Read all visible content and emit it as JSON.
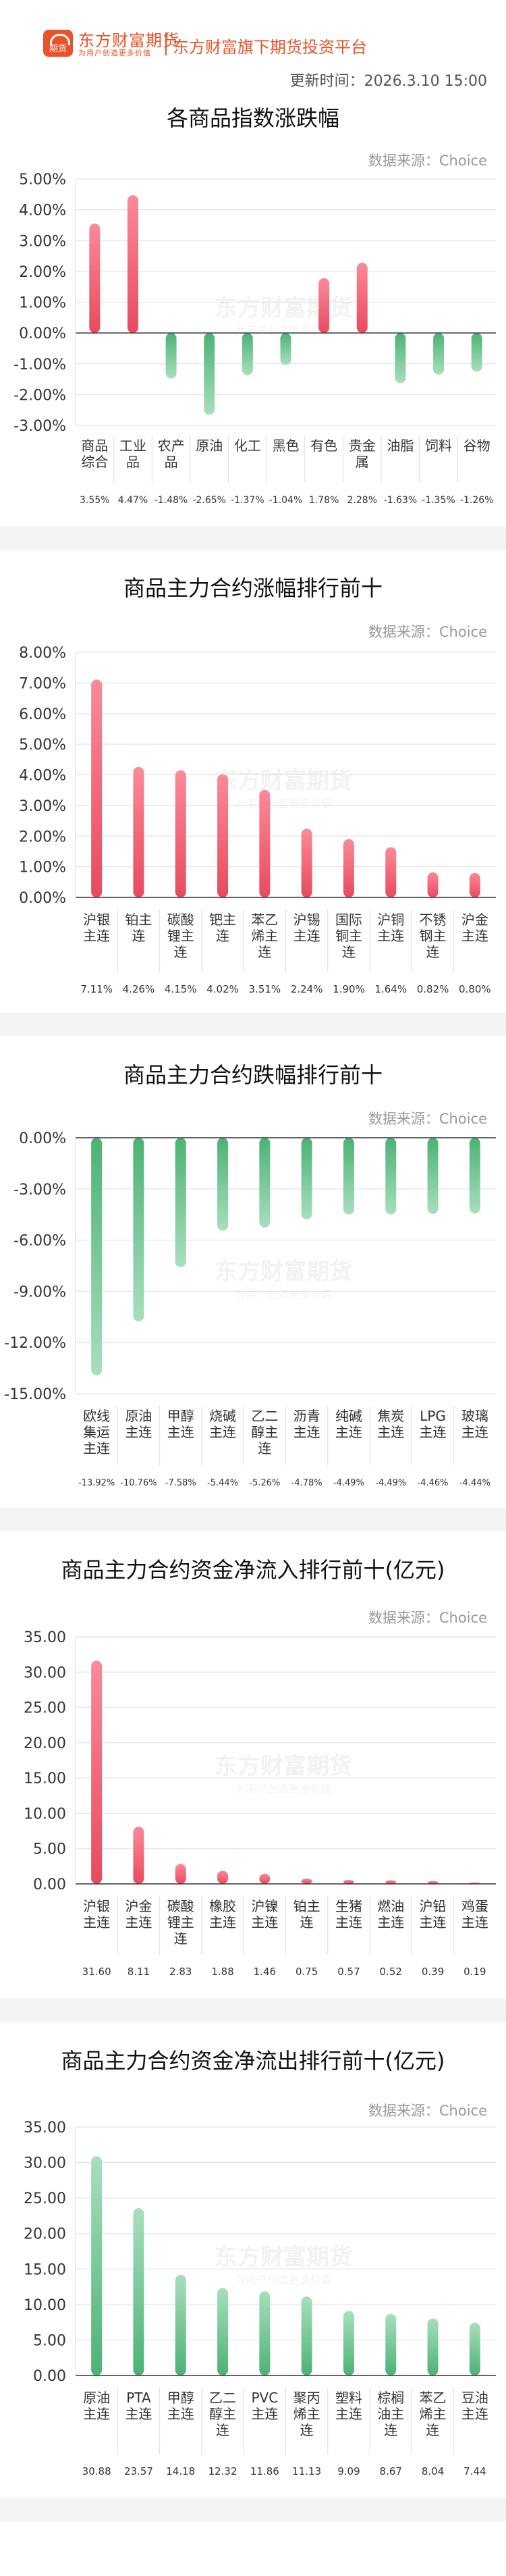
{
  "brand": {
    "name": "东方财富期货",
    "slogan": "为用户创造更多价值",
    "logo_glyph": "期货",
    "platform": "东方财富旗下期货投资平台",
    "color": "#e8532a"
  },
  "update_time": "更新时间：2026.3.10 15:00",
  "watermark": {
    "name": "东方财富期货",
    "slogan": "为用户创造更多价值"
  },
  "colors": {
    "up_top": "#fb8a99",
    "up_bottom": "#e84a5f",
    "down_top": "#a8dfbd",
    "down_bottom": "#4cb274",
    "grid": "#dddddd",
    "axis": "#333333"
  },
  "chart_data": [
    {
      "type": "bar",
      "title": "各商品指数涨跌幅",
      "source": "数据来源：Choice",
      "categories": [
        "商品综合",
        "工业品",
        "农产品",
        "原油",
        "化工",
        "黑色",
        "有色",
        "贵金属",
        "油脂",
        "饲料",
        "谷物"
      ],
      "category_lines": [
        [
          "商品",
          "综合"
        ],
        [
          "工业",
          "品"
        ],
        [
          "农产",
          "品"
        ],
        [
          "原油"
        ],
        [
          "化工"
        ],
        [
          "黑色"
        ],
        [
          "有色"
        ],
        [
          "贵金",
          "属"
        ],
        [
          "油脂"
        ],
        [
          "饲料"
        ],
        [
          "谷物"
        ]
      ],
      "values": [
        3.55,
        4.47,
        -1.48,
        -2.65,
        -1.37,
        -1.04,
        1.78,
        2.28,
        -1.63,
        -1.35,
        -1.26
      ],
      "value_labels": [
        "3.55%",
        "4.47%",
        "-1.48%",
        "-2.65%",
        "-1.37%",
        "-1.04%",
        "1.78%",
        "2.28%",
        "-1.63%",
        "-1.35%",
        "-1.26%"
      ],
      "ylim": [
        -3,
        5
      ],
      "yticks": [
        5,
        4,
        3,
        2,
        1,
        0,
        -1,
        -2,
        -3
      ],
      "ytick_labels": [
        "5.00%",
        "4.00%",
        "3.00%",
        "2.00%",
        "1.00%",
        "0.00%",
        "-1.00%",
        "-2.00%",
        "-3.00%"
      ],
      "grid": true,
      "legend": "none"
    },
    {
      "type": "bar",
      "title": "商品主力合约涨幅排行前十",
      "source": "数据来源：Choice",
      "categories": [
        "沪银主连",
        "铂主连",
        "碳酸锂主连",
        "钯主连",
        "苯乙烯主连",
        "沪锡主连",
        "国际铜主连",
        "沪铜主连",
        "不锈钢主连",
        "沪金主连"
      ],
      "category_lines": [
        [
          "沪银",
          "主连"
        ],
        [
          "铂主",
          "连"
        ],
        [
          "碳酸",
          "锂主",
          "连"
        ],
        [
          "钯主",
          "连"
        ],
        [
          "苯乙",
          "烯主",
          "连"
        ],
        [
          "沪锡",
          "主连"
        ],
        [
          "国际",
          "铜主",
          "连"
        ],
        [
          "沪铜",
          "主连"
        ],
        [
          "不锈",
          "钢主",
          "连"
        ],
        [
          "沪金",
          "主连"
        ]
      ],
      "values": [
        7.11,
        4.26,
        4.15,
        4.02,
        3.51,
        2.24,
        1.9,
        1.64,
        0.82,
        0.8
      ],
      "value_labels": [
        "7.11%",
        "4.26%",
        "4.15%",
        "4.02%",
        "3.51%",
        "2.24%",
        "1.90%",
        "1.64%",
        "0.82%",
        "0.80%"
      ],
      "ylim": [
        0,
        8
      ],
      "yticks": [
        8,
        7,
        6,
        5,
        4,
        3,
        2,
        1,
        0
      ],
      "ytick_labels": [
        "8.00%",
        "7.00%",
        "6.00%",
        "5.00%",
        "4.00%",
        "3.00%",
        "2.00%",
        "1.00%",
        "0.00%"
      ],
      "grid": true,
      "legend": "none"
    },
    {
      "type": "bar",
      "title": "商品主力合约跌幅排行前十",
      "source": "数据来源：Choice",
      "categories": [
        "欧线集运主连",
        "原油主连",
        "甲醇主连",
        "烧碱主连",
        "乙二醇主连",
        "沥青主连",
        "纯碱主连",
        "焦炭主连",
        "LPG主连",
        "玻璃主连"
      ],
      "category_lines": [
        [
          "欧线",
          "集运",
          "主连"
        ],
        [
          "原油",
          "主连"
        ],
        [
          "甲醇",
          "主连"
        ],
        [
          "烧碱",
          "主连"
        ],
        [
          "乙二",
          "醇主",
          "连"
        ],
        [
          "沥青",
          "主连"
        ],
        [
          "纯碱",
          "主连"
        ],
        [
          "焦炭",
          "主连"
        ],
        [
          "LPG",
          "主连"
        ],
        [
          "玻璃",
          "主连"
        ]
      ],
      "values": [
        -13.92,
        -10.76,
        -7.58,
        -5.44,
        -5.26,
        -4.78,
        -4.49,
        -4.49,
        -4.46,
        -4.44
      ],
      "value_labels": [
        "-13.92%",
        "-10.76%",
        "-7.58%",
        "-5.44%",
        "-5.26%",
        "-4.78%",
        "-4.49%",
        "-4.49%",
        "-4.46%",
        "-4.44%"
      ],
      "ylim": [
        -15,
        0
      ],
      "yticks": [
        0,
        -3,
        -6,
        -9,
        -12,
        -15
      ],
      "ytick_labels": [
        "0.00%",
        "-3.00%",
        "-6.00%",
        "-9.00%",
        "-12.00%",
        "-15.00%"
      ],
      "grid": true,
      "legend": "none"
    },
    {
      "type": "bar",
      "title": "商品主力合约资金净流入排行前十(亿元)",
      "source": "数据来源：Choice",
      "categories": [
        "沪银主连",
        "沪金主连",
        "碳酸锂主连",
        "橡胶主连",
        "沪镍主连",
        "铂主连",
        "生猪主连",
        "燃油主连",
        "沪铅主连",
        "鸡蛋主连"
      ],
      "category_lines": [
        [
          "沪银",
          "主连"
        ],
        [
          "沪金",
          "主连"
        ],
        [
          "碳酸",
          "锂主",
          "连"
        ],
        [
          "橡胶",
          "主连"
        ],
        [
          "沪镍",
          "主连"
        ],
        [
          "铂主",
          "连"
        ],
        [
          "生猪",
          "主连"
        ],
        [
          "燃油",
          "主连"
        ],
        [
          "沪铅",
          "主连"
        ],
        [
          "鸡蛋",
          "主连"
        ]
      ],
      "values": [
        31.6,
        8.11,
        2.83,
        1.88,
        1.46,
        0.75,
        0.57,
        0.52,
        0.39,
        0.19
      ],
      "value_labels": [
        "31.60",
        "8.11",
        "2.83",
        "1.88",
        "1.46",
        "0.75",
        "0.57",
        "0.52",
        "0.39",
        "0.19"
      ],
      "ylim": [
        0,
        35
      ],
      "yticks": [
        35,
        30,
        25,
        20,
        15,
        10,
        5,
        0
      ],
      "ytick_labels": [
        "35.00",
        "30.00",
        "25.00",
        "20.00",
        "15.00",
        "10.00",
        "5.00",
        "0.00"
      ],
      "grid": true,
      "legend": "none"
    },
    {
      "type": "bar",
      "title": "商品主力合约资金净流出排行前十(亿元)",
      "source": "数据来源：Choice",
      "categories": [
        "原油主连",
        "PTA主连",
        "甲醇主连",
        "乙二醇主连",
        "PVC主连",
        "聚丙烯主连",
        "塑料主连",
        "棕榈油主连",
        "苯乙烯主连",
        "豆油主连"
      ],
      "category_lines": [
        [
          "原油",
          "主连"
        ],
        [
          "PTA",
          "主连"
        ],
        [
          "甲醇",
          "主连"
        ],
        [
          "乙二",
          "醇主",
          "连"
        ],
        [
          "PVC",
          "主连"
        ],
        [
          "聚丙",
          "烯主",
          "连"
        ],
        [
          "塑料",
          "主连"
        ],
        [
          "棕榈",
          "油主",
          "连"
        ],
        [
          "苯乙",
          "烯主",
          "连"
        ],
        [
          "豆油",
          "主连"
        ]
      ],
      "values": [
        30.88,
        23.57,
        14.18,
        12.32,
        11.86,
        11.13,
        9.09,
        8.67,
        8.04,
        7.44
      ],
      "value_labels": [
        "30.88",
        "23.57",
        "14.18",
        "12.32",
        "11.86",
        "11.13",
        "9.09",
        "8.67",
        "8.04",
        "7.44"
      ],
      "ylim": [
        0,
        35
      ],
      "yticks": [
        35,
        30,
        25,
        20,
        15,
        10,
        5,
        0
      ],
      "ytick_labels": [
        "35.00",
        "30.00",
        "25.00",
        "20.00",
        "15.00",
        "10.00",
        "5.00",
        "0.00"
      ],
      "bar_color": "green",
      "grid": true,
      "legend": "none"
    }
  ]
}
